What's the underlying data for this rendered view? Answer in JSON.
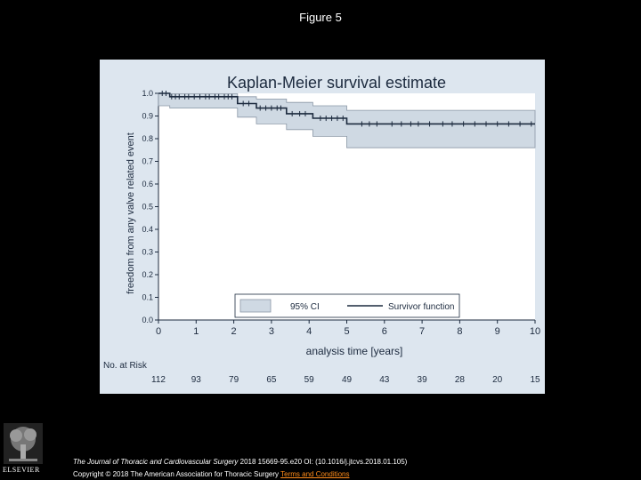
{
  "page": {
    "title": "Figure 5",
    "citation_journal": "The Journal of Thoracic and Cardiovascular Surgery",
    "citation_rest": " 2018 15669-95.e20 OI: (10.1016/j.jtcvs.2018.01.105)",
    "copyright": "Copyright © 2018 The American Association for Thoracic Surgery",
    "terms_link": "Terms and Conditions",
    "publisher": "ELSEVIER"
  },
  "colors": {
    "background": "#000000",
    "panel": "#dde6ef",
    "plot_bg": "#ffffff",
    "ci_fill": "#cfd9e3",
    "ci_stroke": "#8a97a6",
    "survivor_line": "#1c2a3e",
    "link": "#ff8c1a"
  },
  "chart_data": {
    "type": "line",
    "title": "Kaplan-Meier survival estimate",
    "xlabel": "analysis time [years]",
    "ylabel": "freedom from any valve related event",
    "xlim": [
      0,
      10
    ],
    "ylim": [
      0,
      1.0
    ],
    "x_ticks": [
      "0",
      "1",
      "2",
      "3",
      "4",
      "5",
      "6",
      "7",
      "8",
      "9",
      "10"
    ],
    "y_ticks": [
      "0.0",
      "0.1",
      "0.2",
      "0.3",
      "0.4",
      "0.5",
      "0.6",
      "0.7",
      "0.8",
      "0.9",
      "1.0"
    ],
    "legend": {
      "placement": "bottom",
      "ci_label": "95% CI",
      "line_label": "Survivor function"
    },
    "survivor_function": {
      "name": "Survivor function",
      "x": [
        0,
        0.3,
        2.1,
        2.6,
        3.4,
        4.1,
        5.0,
        10.0
      ],
      "y": [
        1.0,
        0.985,
        0.955,
        0.935,
        0.91,
        0.89,
        0.865,
        0.865
      ]
    },
    "ci_upper": {
      "x": [
        0,
        0.3,
        2.1,
        2.6,
        3.4,
        4.1,
        5.0,
        10.0
      ],
      "y": [
        1.0,
        0.998,
        0.985,
        0.975,
        0.96,
        0.945,
        0.925,
        0.925
      ]
    },
    "ci_lower": {
      "x": [
        0,
        0.3,
        2.1,
        2.6,
        3.4,
        4.1,
        5.0,
        10.0
      ],
      "y": [
        0.945,
        0.935,
        0.895,
        0.865,
        0.84,
        0.81,
        0.76,
        0.76
      ]
    },
    "censor_times": [
      0.1,
      0.2,
      0.35,
      0.45,
      0.55,
      0.7,
      0.8,
      0.95,
      1.1,
      1.25,
      1.35,
      1.5,
      1.6,
      1.75,
      1.85,
      1.95,
      2.25,
      2.4,
      2.7,
      2.85,
      3.0,
      3.15,
      3.25,
      3.55,
      3.75,
      3.9,
      4.3,
      4.45,
      4.6,
      4.75,
      4.9,
      5.4,
      5.6,
      5.8,
      6.2,
      6.45,
      6.7,
      6.9,
      7.2,
      7.55,
      7.8,
      8.1,
      8.4,
      8.7,
      9.0,
      9.3,
      9.6,
      9.9
    ],
    "risk_table": {
      "label": "No. at Risk",
      "times": [
        0,
        1,
        2,
        3,
        4,
        5,
        6,
        7,
        8,
        9,
        10
      ],
      "counts": [
        "112",
        "93",
        "79",
        "65",
        "59",
        "49",
        "43",
        "39",
        "28",
        "20",
        "15"
      ]
    }
  }
}
